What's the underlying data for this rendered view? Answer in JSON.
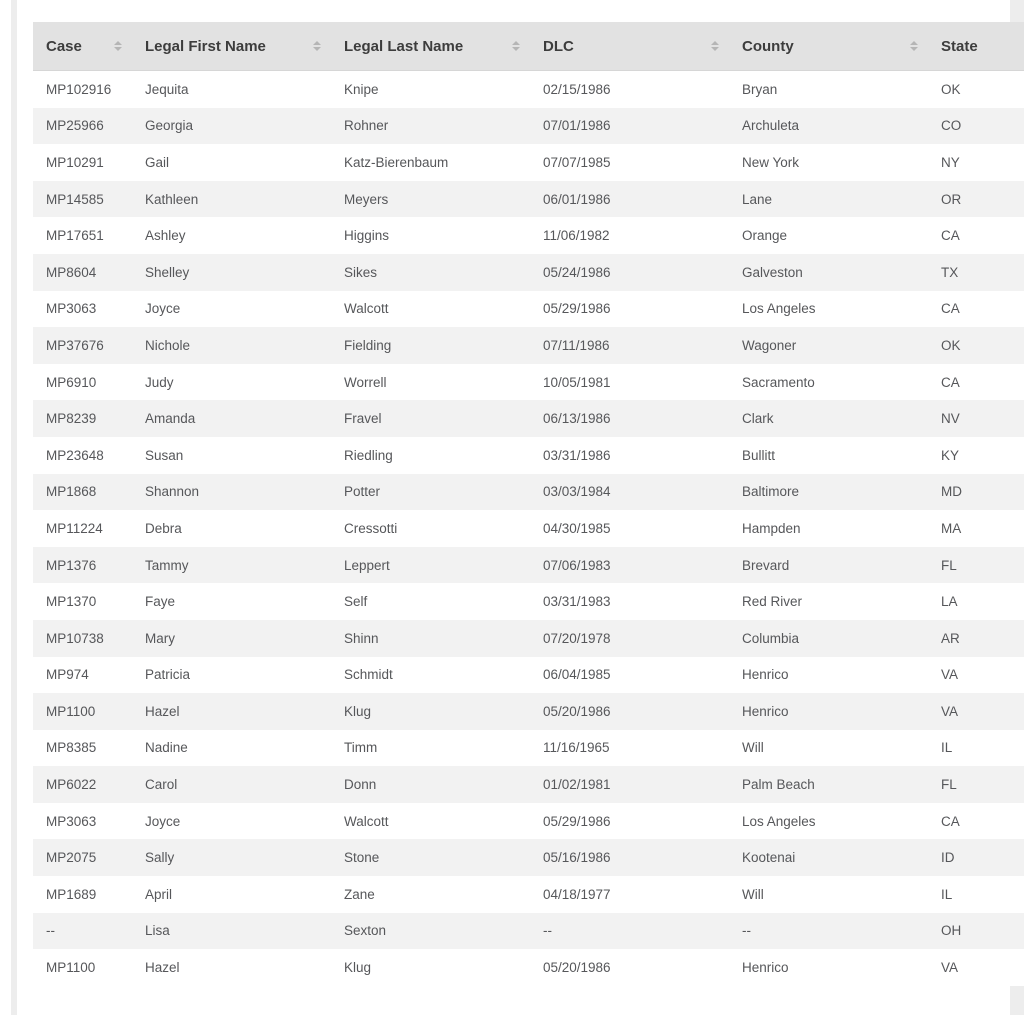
{
  "table": {
    "columns": [
      {
        "key": "case",
        "label": "Case"
      },
      {
        "key": "first",
        "label": "Legal First Name"
      },
      {
        "key": "last",
        "label": "Legal Last Name"
      },
      {
        "key": "dlc",
        "label": "DLC"
      },
      {
        "key": "county",
        "label": "County"
      },
      {
        "key": "state",
        "label": "State"
      }
    ],
    "sort_icon": "sort-arrows",
    "rows": [
      [
        "MP102916",
        "Jequita",
        "Knipe",
        "02/15/1986",
        "Bryan",
        "OK"
      ],
      [
        "MP25966",
        "Georgia",
        "Rohner",
        "07/01/1986",
        "Archuleta",
        "CO"
      ],
      [
        "MP10291",
        "Gail",
        "Katz-Bierenbaum",
        "07/07/1985",
        "New York",
        "NY"
      ],
      [
        "MP14585",
        "Kathleen",
        "Meyers",
        "06/01/1986",
        "Lane",
        "OR"
      ],
      [
        "MP17651",
        "Ashley",
        "Higgins",
        "11/06/1982",
        "Orange",
        "CA"
      ],
      [
        "MP8604",
        "Shelley",
        "Sikes",
        "05/24/1986",
        "Galveston",
        "TX"
      ],
      [
        "MP3063",
        "Joyce",
        "Walcott",
        "05/29/1986",
        "Los Angeles",
        "CA"
      ],
      [
        "MP37676",
        "Nichole",
        "Fielding",
        "07/11/1986",
        "Wagoner",
        "OK"
      ],
      [
        "MP6910",
        "Judy",
        "Worrell",
        "10/05/1981",
        "Sacramento",
        "CA"
      ],
      [
        "MP8239",
        "Amanda",
        "Fravel",
        "06/13/1986",
        "Clark",
        "NV"
      ],
      [
        "MP23648",
        "Susan",
        "Riedling",
        "03/31/1986",
        "Bullitt",
        "KY"
      ],
      [
        "MP1868",
        "Shannon",
        "Potter",
        "03/03/1984",
        "Baltimore",
        "MD"
      ],
      [
        "MP11224",
        "Debra",
        "Cressotti",
        "04/30/1985",
        "Hampden",
        "MA"
      ],
      [
        "MP1376",
        "Tammy",
        "Leppert",
        "07/06/1983",
        "Brevard",
        "FL"
      ],
      [
        "MP1370",
        "Faye",
        "Self",
        "03/31/1983",
        "Red River",
        "LA"
      ],
      [
        "MP10738",
        "Mary",
        "Shinn",
        "07/20/1978",
        "Columbia",
        "AR"
      ],
      [
        "MP974",
        "Patricia",
        "Schmidt",
        "06/04/1985",
        "Henrico",
        "VA"
      ],
      [
        "MP1100",
        "Hazel",
        "Klug",
        "05/20/1986",
        "Henrico",
        "VA"
      ],
      [
        "MP8385",
        "Nadine",
        "Timm",
        "11/16/1965",
        "Will",
        "IL"
      ],
      [
        "MP6022",
        "Carol",
        "Donn",
        "01/02/1981",
        "Palm Beach",
        "FL"
      ],
      [
        "MP3063",
        "Joyce",
        "Walcott",
        "05/29/1986",
        "Los Angeles",
        "CA"
      ],
      [
        "MP2075",
        "Sally",
        "Stone",
        "05/16/1986",
        "Kootenai",
        "ID"
      ],
      [
        "MP1689",
        "April",
        "Zane",
        "04/18/1977",
        "Will",
        "IL"
      ],
      [
        "--",
        "Lisa",
        "Sexton",
        "--",
        "--",
        "OH"
      ],
      [
        "MP1100",
        "Hazel",
        "Klug",
        "05/20/1986",
        "Henrico",
        "VA"
      ]
    ]
  },
  "colors": {
    "header_bg": "#e2e2e2",
    "alt_row_bg": "#f2f2f2",
    "header_text": "#3d3d3d",
    "body_text": "#56575a",
    "sort_icon": "#b5b5b5",
    "page_edge": "#ededed"
  }
}
